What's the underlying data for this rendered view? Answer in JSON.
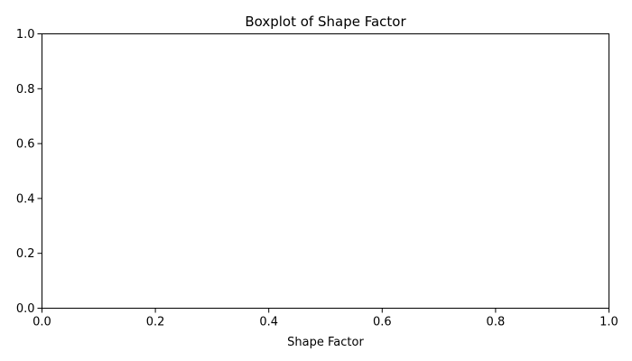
{
  "chart_data": {
    "type": "box",
    "title": "Boxplot of Shape Factor",
    "xlabel": "Shape Factor",
    "ylabel": "",
    "xlim": [
      0.0,
      1.0
    ],
    "ylim": [
      0.0,
      1.0
    ],
    "xticks": [
      {
        "value": 0.0,
        "label": "0.0"
      },
      {
        "value": 0.2,
        "label": "0.2"
      },
      {
        "value": 0.4,
        "label": "0.4"
      },
      {
        "value": 0.6,
        "label": "0.6"
      },
      {
        "value": 0.8,
        "label": "0.8"
      },
      {
        "value": 1.0,
        "label": "1.0"
      }
    ],
    "yticks": [
      {
        "value": 0.0,
        "label": "0.0"
      },
      {
        "value": 0.2,
        "label": "0.2"
      },
      {
        "value": 0.4,
        "label": "0.4"
      },
      {
        "value": 0.6,
        "label": "0.6"
      },
      {
        "value": 0.8,
        "label": "0.8"
      },
      {
        "value": 1.0,
        "label": "1.0"
      }
    ],
    "series": [],
    "grid": false,
    "legend": "none"
  }
}
